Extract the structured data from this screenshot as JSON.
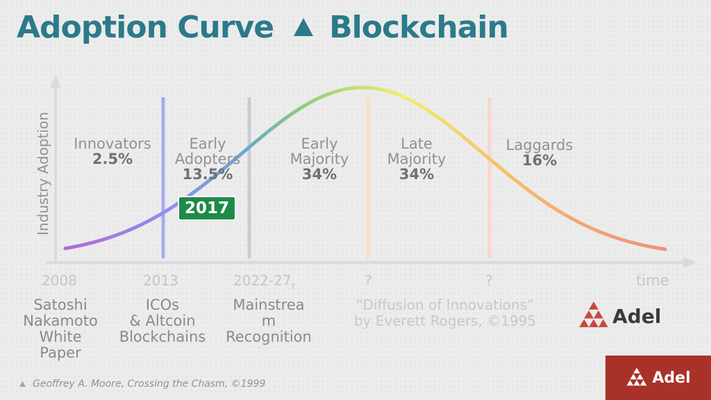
{
  "title": {
    "left": "Adoption Curve",
    "right": "Blockchain"
  },
  "axes": {
    "y_label": "Industry Adoption",
    "x_label": "time"
  },
  "segments": [
    {
      "name": "Innovators",
      "name2": "",
      "pct": "2.5%"
    },
    {
      "name": "Early",
      "name2": "Adopters",
      "pct": "13.5%"
    },
    {
      "name": "Early",
      "name2": "Majority",
      "pct": "34%"
    },
    {
      "name": "Late",
      "name2": "Majority",
      "pct": "34%"
    },
    {
      "name": "Laggards",
      "name2": "",
      "pct": "16%"
    }
  ],
  "years": [
    "2008",
    "2013",
    "2022-27",
    "?",
    "?"
  ],
  "year_subscript": "F",
  "milestones": [
    {
      "l1": "Satoshi",
      "l2": "Nakamoto",
      "l3": "White",
      "l4": "Paper"
    },
    {
      "l1": "ICOs",
      "l2": "& Altcoin",
      "l3": "Blockchains"
    },
    {
      "l1": "Mainstrea",
      "l2": "m",
      "l3": "Recognition"
    }
  ],
  "current_marker": "2017",
  "rogers": {
    "l1": "“Diffusion of Innovations”",
    "l2": "by Everett Rogers, ©1995"
  },
  "footnote": "Geoffrey A. Moore, Crossing the Chasm, ©1999",
  "logo": {
    "name": "Adel"
  },
  "colors": {
    "title": "#2b7a8a",
    "badge": "#1f8a48",
    "logo_red": "#a8322a",
    "divider_innovators": "#a9aaf0",
    "divider_early_adopters": "#c8ccd4",
    "divider_early_majority": "#f5e2bd",
    "divider_late_majority": "#f7d7c8"
  },
  "icons": [
    "triangle-icon",
    "adel-logo-icon"
  ]
}
